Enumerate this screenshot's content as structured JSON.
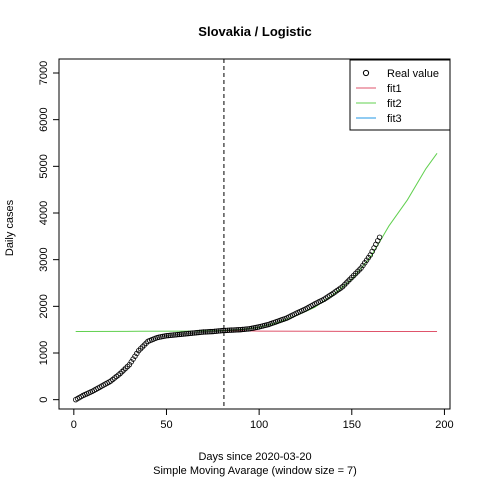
{
  "chart_data": {
    "type": "scatter",
    "title": "Slovakia / Logistic",
    "xlabel": "Days since 2020-03-20",
    "xlabel_sub": "Simple Moving Avarage (window size = 7)",
    "ylabel": "Daily cases",
    "xlim": [
      -8,
      203
    ],
    "ylim": [
      -200,
      7300
    ],
    "x_ticks": [
      0,
      50,
      100,
      150,
      200
    ],
    "y_ticks": [
      0,
      1000,
      2000,
      3000,
      4000,
      5000,
      6000,
      7000
    ],
    "vline_x": 81,
    "vline_style": "dashed",
    "legend_position": "top-right",
    "legend": [
      {
        "label": "Real value",
        "kind": "point",
        "color": "#000000"
      },
      {
        "label": "fit1",
        "kind": "line",
        "color": "#DF536B"
      },
      {
        "label": "fit2",
        "kind": "line",
        "color": "#61D04F"
      },
      {
        "label": "fit3",
        "kind": "line",
        "color": "#2297E6"
      }
    ],
    "series": [
      {
        "name": "Real value",
        "kind": "points",
        "color": "#000000",
        "knots": [
          [
            1,
            0
          ],
          [
            5,
            90
          ],
          [
            10,
            180
          ],
          [
            15,
            290
          ],
          [
            20,
            400
          ],
          [
            25,
            560
          ],
          [
            30,
            750
          ],
          [
            35,
            1050
          ],
          [
            40,
            1250
          ],
          [
            45,
            1330
          ],
          [
            50,
            1370
          ],
          [
            55,
            1390
          ],
          [
            60,
            1410
          ],
          [
            65,
            1430
          ],
          [
            70,
            1450
          ],
          [
            75,
            1460
          ],
          [
            80,
            1480
          ],
          [
            85,
            1490
          ],
          [
            90,
            1500
          ],
          [
            95,
            1520
          ],
          [
            100,
            1560
          ],
          [
            105,
            1610
          ],
          [
            110,
            1680
          ],
          [
            115,
            1750
          ],
          [
            120,
            1850
          ],
          [
            125,
            1940
          ],
          [
            130,
            2050
          ],
          [
            135,
            2150
          ],
          [
            140,
            2280
          ],
          [
            145,
            2420
          ],
          [
            150,
            2620
          ],
          [
            155,
            2820
          ],
          [
            160,
            3100
          ],
          [
            165,
            3480
          ]
        ],
        "x_range": [
          1,
          165
        ]
      },
      {
        "name": "fit1",
        "kind": "line",
        "color": "#DF536B",
        "points": [
          [
            80,
            1480
          ],
          [
            100,
            1470
          ],
          [
            130,
            1465
          ],
          [
            160,
            1462
          ],
          [
            196,
            1460
          ]
        ]
      },
      {
        "name": "fit2",
        "kind": "line",
        "color": "#61D04F",
        "points": [
          [
            1,
            1460
          ],
          [
            35,
            1465
          ],
          [
            60,
            1470
          ],
          [
            80,
            1480
          ],
          [
            90,
            1500
          ],
          [
            100,
            1550
          ],
          [
            110,
            1650
          ],
          [
            120,
            1800
          ],
          [
            130,
            1980
          ],
          [
            140,
            2250
          ],
          [
            150,
            2580
          ],
          [
            160,
            3050
          ],
          [
            165,
            3380
          ],
          [
            170,
            3720
          ],
          [
            180,
            4280
          ],
          [
            190,
            4950
          ],
          [
            196,
            5280
          ]
        ]
      },
      {
        "name": "fit3",
        "kind": "line",
        "color": "#2297E6",
        "points": []
      }
    ]
  }
}
